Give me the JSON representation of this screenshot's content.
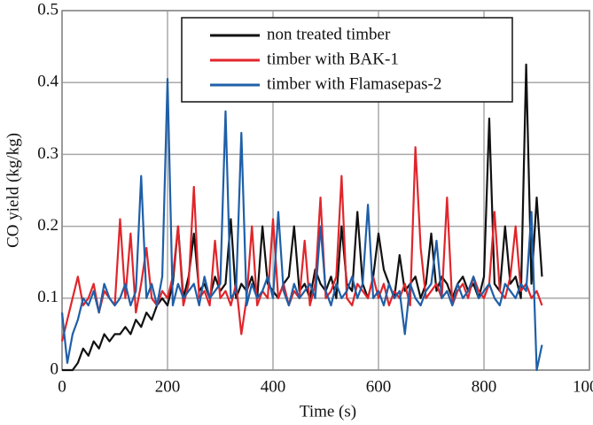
{
  "chart_data": {
    "type": "line",
    "xlabel": "Time (s)",
    "ylabel": "CO yield (kg/kg)",
    "x": [
      0,
      10,
      20,
      30,
      40,
      50,
      60,
      70,
      80,
      90,
      100,
      110,
      120,
      130,
      140,
      150,
      160,
      170,
      180,
      190,
      200,
      210,
      220,
      230,
      240,
      250,
      260,
      270,
      280,
      290,
      300,
      310,
      320,
      330,
      340,
      350,
      360,
      370,
      380,
      390,
      400,
      410,
      420,
      430,
      440,
      450,
      460,
      470,
      480,
      490,
      500,
      510,
      520,
      530,
      540,
      550,
      560,
      570,
      580,
      590,
      600,
      610,
      620,
      630,
      640,
      650,
      660,
      670,
      680,
      690,
      700,
      710,
      720,
      730,
      740,
      750,
      760,
      770,
      780,
      790,
      800,
      810,
      820,
      830,
      840,
      850,
      860,
      870,
      880,
      890,
      900,
      910
    ],
    "series": [
      {
        "name": "non treated timber",
        "color": "#111111",
        "values": [
          0.0,
          0.0,
          0.0,
          0.01,
          0.03,
          0.02,
          0.04,
          0.03,
          0.05,
          0.04,
          0.05,
          0.05,
          0.06,
          0.05,
          0.07,
          0.06,
          0.08,
          0.07,
          0.09,
          0.1,
          0.09,
          0.12,
          0.2,
          0.1,
          0.13,
          0.19,
          0.11,
          0.12,
          0.1,
          0.13,
          0.11,
          0.12,
          0.21,
          0.1,
          0.12,
          0.11,
          0.13,
          0.1,
          0.2,
          0.12,
          0.11,
          0.1,
          0.12,
          0.13,
          0.2,
          0.11,
          0.12,
          0.1,
          0.14,
          0.12,
          0.11,
          0.13,
          0.1,
          0.2,
          0.12,
          0.11,
          0.22,
          0.12,
          0.1,
          0.13,
          0.19,
          0.14,
          0.12,
          0.1,
          0.16,
          0.11,
          0.12,
          0.13,
          0.1,
          0.12,
          0.19,
          0.11,
          0.13,
          0.12,
          0.1,
          0.12,
          0.13,
          0.11,
          0.12,
          0.1,
          0.13,
          0.35,
          0.12,
          0.11,
          0.2,
          0.12,
          0.13,
          0.1,
          0.425,
          0.12,
          0.24,
          0.13
        ]
      },
      {
        "name": "timber with BAK-1",
        "color": "#e0262b",
        "values": [
          0.04,
          0.07,
          0.1,
          0.13,
          0.09,
          0.1,
          0.12,
          0.08,
          0.11,
          0.1,
          0.09,
          0.21,
          0.1,
          0.19,
          0.08,
          0.12,
          0.17,
          0.1,
          0.09,
          0.11,
          0.1,
          0.13,
          0.2,
          0.09,
          0.12,
          0.255,
          0.1,
          0.11,
          0.09,
          0.18,
          0.1,
          0.11,
          0.09,
          0.12,
          0.05,
          0.1,
          0.2,
          0.09,
          0.11,
          0.1,
          0.21,
          0.1,
          0.12,
          0.09,
          0.11,
          0.1,
          0.18,
          0.09,
          0.12,
          0.24,
          0.1,
          0.11,
          0.13,
          0.27,
          0.1,
          0.09,
          0.12,
          0.11,
          0.1,
          0.13,
          0.1,
          0.12,
          0.09,
          0.11,
          0.1,
          0.12,
          0.09,
          0.31,
          0.17,
          0.1,
          0.11,
          0.12,
          0.1,
          0.24,
          0.09,
          0.11,
          0.12,
          0.1,
          0.13,
          0.11,
          0.1,
          0.12,
          0.22,
          0.11,
          0.1,
          0.13,
          0.2,
          0.11,
          0.12,
          0.1,
          0.11,
          0.09
        ]
      },
      {
        "name": "timber with Flamasepas-2",
        "color": "#1f5fa8",
        "values": [
          0.08,
          0.01,
          0.05,
          0.07,
          0.1,
          0.09,
          0.11,
          0.08,
          0.12,
          0.1,
          0.09,
          0.1,
          0.12,
          0.09,
          0.11,
          0.27,
          0.1,
          0.12,
          0.09,
          0.13,
          0.405,
          0.09,
          0.12,
          0.1,
          0.11,
          0.12,
          0.09,
          0.13,
          0.1,
          0.11,
          0.12,
          0.36,
          0.1,
          0.11,
          0.33,
          0.09,
          0.12,
          0.1,
          0.11,
          0.13,
          0.1,
          0.22,
          0.11,
          0.09,
          0.12,
          0.1,
          0.11,
          0.12,
          0.1,
          0.2,
          0.11,
          0.09,
          0.12,
          0.1,
          0.11,
          0.13,
          0.1,
          0.12,
          0.23,
          0.1,
          0.11,
          0.09,
          0.12,
          0.1,
          0.11,
          0.05,
          0.12,
          0.1,
          0.09,
          0.11,
          0.12,
          0.18,
          0.1,
          0.11,
          0.09,
          0.12,
          0.1,
          0.11,
          0.13,
          0.1,
          0.11,
          0.12,
          0.1,
          0.09,
          0.12,
          0.11,
          0.1,
          0.12,
          0.11,
          0.22,
          0.0,
          0.035
        ]
      }
    ],
    "xlim": [
      0,
      1000
    ],
    "xticks": [
      0,
      200,
      400,
      600,
      800,
      1000
    ],
    "ylim": [
      0,
      0.5
    ],
    "yticks": [
      0,
      0.1,
      0.2,
      0.3,
      0.4,
      0.5
    ],
    "grid": true,
    "legend": "upper right"
  }
}
